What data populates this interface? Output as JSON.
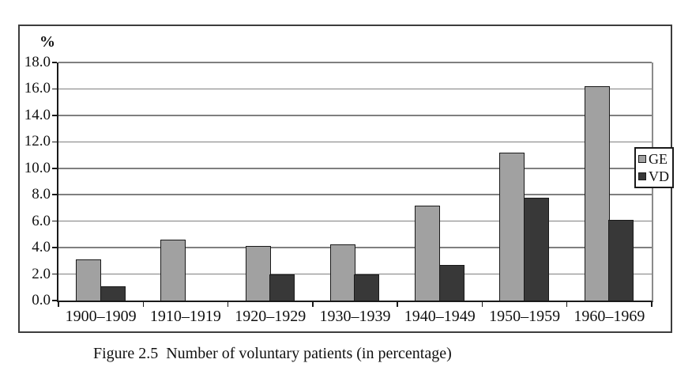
{
  "figure": {
    "caption": "Figure 2.5  Number of voluntary patients (in percentage)"
  },
  "chart_data": {
    "type": "bar",
    "title": "",
    "y_axis_unit_label": "%",
    "categories": [
      "1900–1909",
      "1910–1919",
      "1920–1929",
      "1930–1939",
      "1940–1949",
      "1950–1959",
      "1960–1969"
    ],
    "series": [
      {
        "name": "GE",
        "color": "#a1a1a1",
        "values": [
          3.1,
          4.6,
          4.15,
          4.25,
          7.2,
          11.2,
          16.2
        ]
      },
      {
        "name": "VD",
        "color": "#383838",
        "values": [
          1.05,
          0,
          1.95,
          1.95,
          2.7,
          7.8,
          6.1
        ]
      }
    ],
    "ylim": [
      0,
      18
    ],
    "ytick_step": 2,
    "ytick_label_format": "one-decimal",
    "grid": true,
    "legend_position": "right",
    "gridline_color": "#7f7f7f",
    "bar_border_color": "#1a1a1a"
  }
}
